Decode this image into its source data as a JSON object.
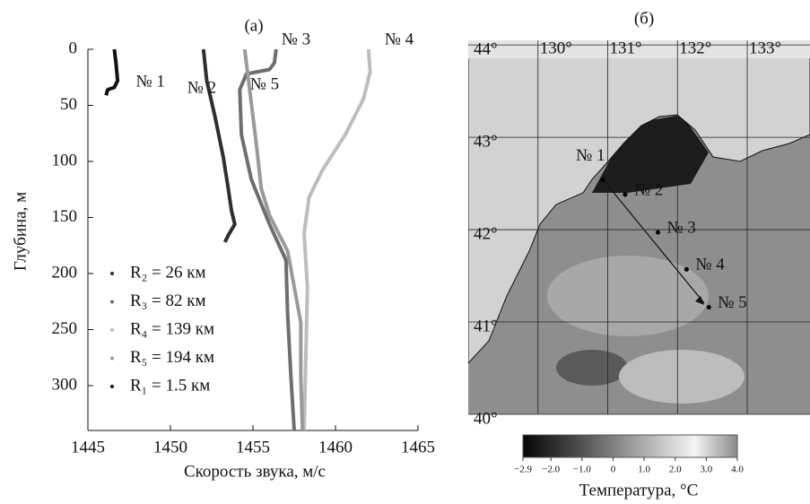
{
  "chart_data": [
    {
      "type": "line",
      "title": "(а)",
      "xlabel": "Скорость звука, м/с",
      "ylabel": "Глубина, м",
      "xlim": [
        1445,
        1465
      ],
      "xticks": [
        1445,
        1450,
        1455,
        1460,
        1465
      ],
      "ylim": [
        0,
        340
      ],
      "yticks": [
        0,
        50,
        100,
        150,
        200,
        250,
        300
      ],
      "y_inverted": true,
      "series": [
        {
          "name": "R₂ = 26 км",
          "label": "№ 2",
          "color": "#2e2e2e",
          "x": [
            1452.0,
            1452.2,
            1452.7,
            1453.2,
            1453.5,
            1453.7,
            1453.9,
            1453.5,
            1453.3
          ],
          "y": [
            0,
            28,
            60,
            96,
            124,
            144,
            156,
            166,
            172
          ]
        },
        {
          "name": "R₃ = 82 км",
          "label": "№ 3",
          "color": "#6e6e6e",
          "x": [
            1456.4,
            1456.3,
            1456.0,
            1454.6,
            1454.2,
            1454.3,
            1454.9,
            1456.0,
            1457.0,
            1457.1,
            1457.3,
            1457.5
          ],
          "y": [
            0,
            12,
            18,
            22,
            36,
            76,
            116,
            156,
            188,
            236,
            292,
            340
          ]
        },
        {
          "name": "R₄ = 139 км",
          "label": "№ 4",
          "color": "#bdbdbd",
          "x": [
            1462.0,
            1462.1,
            1461.7,
            1460.6,
            1459.2,
            1458.4,
            1458.1,
            1458.3,
            1458.2,
            1458.1
          ],
          "y": [
            0,
            20,
            44,
            76,
            108,
            132,
            164,
            212,
            276,
            340
          ]
        },
        {
          "name": "R₅ = 194 км",
          "label": "№ 5",
          "color": "#9a9a9a",
          "x": [
            1454.5,
            1454.8,
            1455.2,
            1455.5,
            1456.0,
            1457.1,
            1457.3,
            1457.9,
            1457.9,
            1458.0
          ],
          "y": [
            0,
            36,
            84,
            124,
            148,
            180,
            196,
            244,
            292,
            340
          ]
        },
        {
          "name": "R₁ = 1.5 км",
          "label": "№ 1",
          "color": "#111111",
          "x": [
            1446.6,
            1446.7,
            1446.8,
            1446.6,
            1446.2,
            1446.1
          ],
          "y": [
            0,
            12,
            28,
            34,
            36,
            41
          ]
        }
      ]
    },
    {
      "type": "map",
      "title": "(б)",
      "xlim": [
        129,
        133.9
      ],
      "xticks": [
        {
          "value": 130,
          "label": "130°"
        },
        {
          "value": 131,
          "label": "131°"
        },
        {
          "value": 132,
          "label": "132°"
        },
        {
          "value": 133,
          "label": "133°"
        }
      ],
      "ylim": [
        40,
        44.05
      ],
      "yticks": [
        {
          "value": 44,
          "label": "44°"
        },
        {
          "value": 43,
          "label": "43°"
        },
        {
          "value": 42,
          "label": "42°"
        },
        {
          "value": 41,
          "label": "41°"
        },
        {
          "value": 40,
          "label": "40°"
        }
      ],
      "stations": {
        "labels": [
          "№ 1",
          "№ 2",
          "№ 3",
          "№ 4",
          "№ 5"
        ],
        "lon": [
          130.93,
          131.25,
          131.72,
          132.13,
          132.45
        ],
        "lat": [
          42.54,
          42.38,
          41.97,
          41.57,
          41.16
        ]
      },
      "colorbar": {
        "label": "Температура, °C",
        "lim": [
          -2.9,
          4.0
        ],
        "ticks": [
          {
            "value": -2.9,
            "label": "−2.9"
          },
          {
            "value": -2.0,
            "label": "−2.0"
          },
          {
            "value": -1.0,
            "label": "−1.0"
          },
          0,
          {
            "value": 1.0,
            "label": "1.0"
          },
          {
            "value": 2.0,
            "label": "2.0"
          },
          {
            "value": 3.0,
            "label": "3.0"
          },
          {
            "value": 4.0,
            "label": "4.0"
          }
        ]
      }
    }
  ]
}
